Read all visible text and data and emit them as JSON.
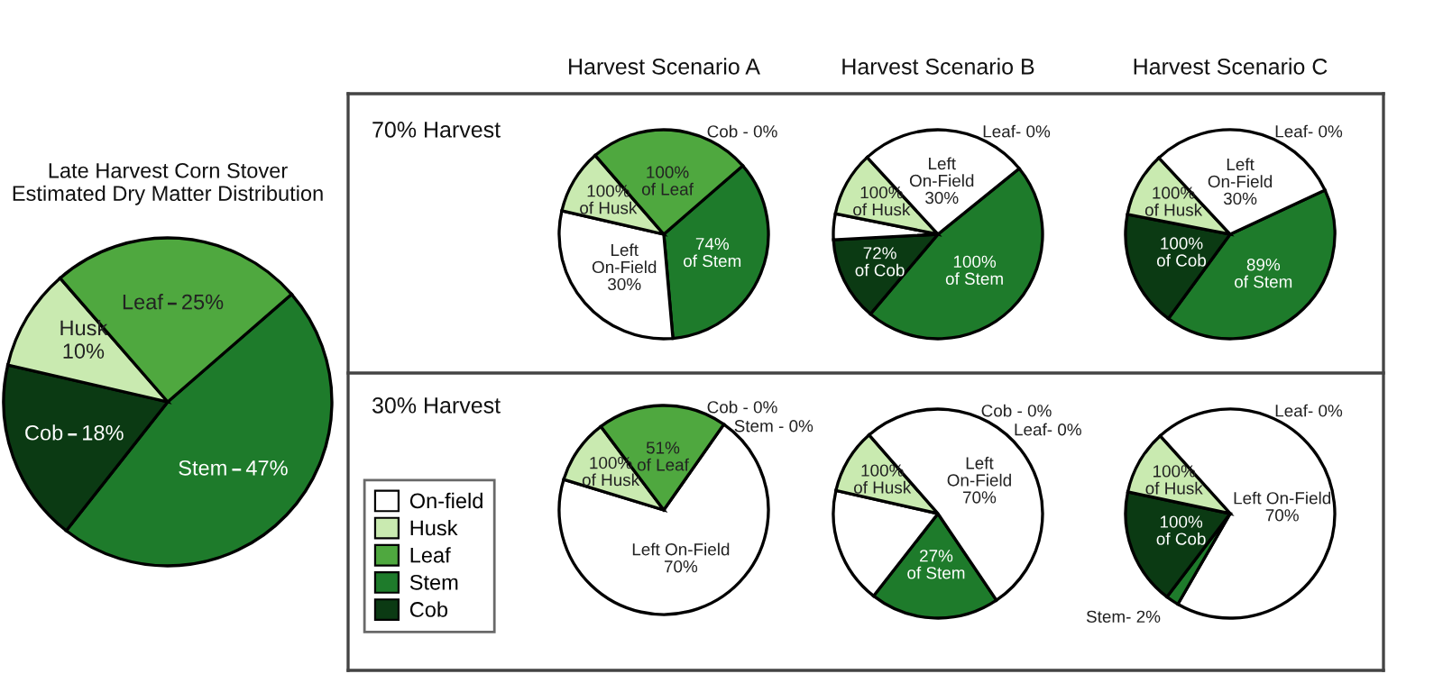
{
  "chart_data": [
    {
      "type": "pie",
      "title": "Late Harvest Corn Stover\nEstimated Dry Matter Distribution",
      "categories": [
        "Stem",
        "Cob",
        "Husk",
        "Leaf"
      ],
      "values": [
        47,
        18,
        10,
        25
      ],
      "colors": [
        "#1e7b2b",
        "#0b3a13",
        "#c9eab0",
        "#4fa83f"
      ],
      "value_labels": [
        "47%",
        "18%",
        "10%",
        "25%"
      ]
    },
    {
      "type": "pie",
      "title": "Harvest Scenario A",
      "annotations": [
        "70% Harvest",
        "74%\nof Stem",
        "100%\nof Husk",
        "100%\nof Leaf"
      ],
      "categories": [
        null,
        null,
        null,
        null,
        null
      ],
      "values": [
        35,
        30,
        10,
        25,
        0
      ],
      "colors": [
        "#1e7b2b",
        "#ffffff",
        "#c9eab0",
        "#4fa83f",
        "#0b3a13"
      ],
      "value_labels": [
        null,
        "Left\nOn-Field\n30%",
        null,
        null,
        "Cob - 0%"
      ]
    },
    {
      "type": "pie",
      "title": "Harvest Scenario B",
      "annotations": [
        "100%\nof Stem",
        "72%\nof Cob",
        "100%\nof Husk",
        "Left\nOn-Field\n30%"
      ],
      "categories": [
        null,
        null,
        null,
        null,
        null,
        null
      ],
      "values": [
        47,
        13,
        4,
        10,
        26,
        0
      ],
      "colors": [
        "#1e7b2b",
        "#0b3a13",
        "#ffffff",
        "#c9eab0",
        "#ffffff",
        "#4fa83f"
      ],
      "value_labels": [
        null,
        null,
        null,
        null,
        null,
        "Leaf- 0%"
      ]
    },
    {
      "type": "pie",
      "title": "Harvest Scenario C",
      "annotations": [
        "89%\nof Stem",
        "100%\nof Cob",
        "100%\nof Husk"
      ],
      "categories": [
        null,
        null,
        null,
        null,
        null
      ],
      "values": [
        42,
        18,
        10,
        30,
        0
      ],
      "colors": [
        "#1e7b2b",
        "#0b3a13",
        "#c9eab0",
        "#ffffff",
        "#4fa83f"
      ],
      "value_labels": [
        null,
        null,
        null,
        "Left\nOn-Field\n30%",
        "Leaf- 0%"
      ]
    },
    {
      "type": "pie",
      "annotations": [
        "30% Harvest",
        "100%\nof Husk",
        "51%\nof Leaf"
      ],
      "legend": "left",
      "categories": [
        "On-field",
        "Husk",
        "Leaf",
        "Stem",
        "Cob"
      ],
      "values": [
        70,
        10,
        20,
        0,
        0
      ],
      "colors": [
        "#ffffff",
        "#c9eab0",
        "#4fa83f",
        "#1e7b2b",
        "#0b3a13"
      ],
      "value_labels": [
        "Left On-Field\n70%",
        null,
        null,
        "Stem - 0%",
        "Cob - 0%"
      ]
    },
    {
      "type": "pie",
      "annotations": [
        "27%\nof Stem",
        "100%\nof Husk",
        "Left\nOn-Field\n70%"
      ],
      "categories": [
        null,
        null,
        null,
        null,
        null,
        null
      ],
      "values": [
        20,
        18,
        10,
        52,
        0,
        0
      ],
      "colors": [
        "#1e7b2b",
        "#ffffff",
        "#c9eab0",
        "#ffffff",
        "#4fa83f",
        "#0b3a13"
      ],
      "value_labels": [
        null,
        null,
        null,
        null,
        "Leaf- 0%",
        "Cob - 0%"
      ]
    },
    {
      "type": "pie",
      "annotations": [
        "100%\nof Cob",
        "100%\nof Husk"
      ],
      "categories": [
        null,
        null,
        null,
        null,
        null
      ],
      "values": [
        70,
        2,
        18,
        10,
        0
      ],
      "colors": [
        "#ffffff",
        "#1e7b2b",
        "#0b3a13",
        "#c9eab0",
        "#4fa83f"
      ],
      "value_labels": [
        "Left On-Field\n70%",
        "Stem- 2%",
        null,
        null,
        "Leaf- 0%"
      ]
    }
  ]
}
